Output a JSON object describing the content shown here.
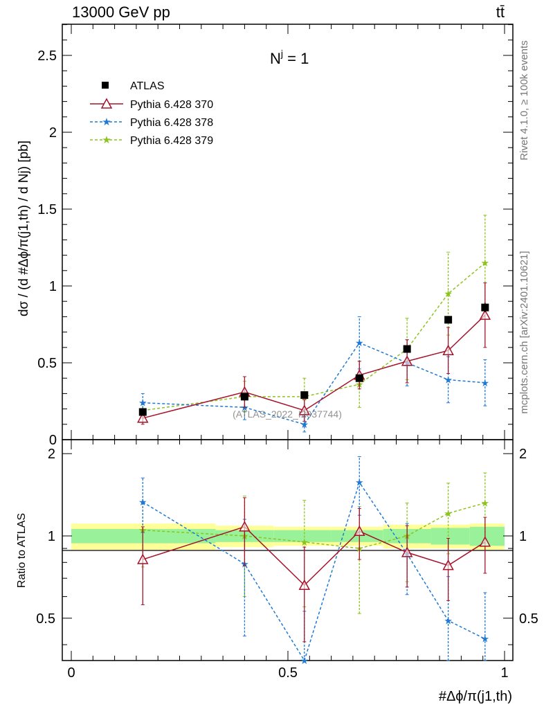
{
  "header": {
    "left": "13000 GeV pp",
    "right": "tt̄"
  },
  "side_labels": {
    "rivet": "Rivet 4.1.0, ≥ 100k events",
    "mcplots": "mcplots.cern.ch [arXiv:2401.10621]"
  },
  "panel_title": "N",
  "panel_title_sup": "j",
  "panel_title_suffix": " = 1",
  "watermark": "(ATLAS_2022_I2037744)",
  "ylabel_main": "dσ / (d #Δϕ/π(j1,th) / d Nj) [pb]",
  "ylabel_ratio": "Ratio to ATLAS",
  "xlabel": "#Δϕ/π(j1,th)",
  "colors": {
    "atlas": "#000000",
    "s370": "#a5122a",
    "s378": "#1f78d4",
    "s379": "#8cc31c",
    "band_inner": "#99f299",
    "band_outer": "#ffff99"
  },
  "chart_data": [
    {
      "type": "scatter",
      "panel": "main",
      "xlim": [
        0,
        1
      ],
      "ylim": [
        0,
        2.7
      ],
      "x": [
        0.165,
        0.4,
        0.538,
        0.665,
        0.775,
        0.87,
        0.955
      ],
      "yticks": [
        0,
        0.5,
        1,
        1.5,
        2,
        2.5
      ],
      "ytick_labels": [
        "0",
        "0.5",
        "1",
        "1.5",
        "2",
        "2.5"
      ],
      "series": [
        {
          "name": "ATLAS",
          "values": [
            0.18,
            0.28,
            0.29,
            0.4,
            0.59,
            0.78,
            0.86
          ],
          "errors": [
            0.01,
            0.01,
            0.01,
            0.02,
            0.02,
            0.02,
            0.03
          ]
        },
        {
          "name": "Pythia 6.428 370",
          "values": [
            0.14,
            0.31,
            0.19,
            0.42,
            0.51,
            0.58,
            0.81
          ],
          "errors": [
            0.04,
            0.1,
            0.07,
            0.09,
            0.14,
            0.15,
            0.21
          ]
        },
        {
          "name": "Pythia 6.428 378",
          "values": [
            0.24,
            0.21,
            0.1,
            0.63,
            0.5,
            0.39,
            0.37
          ],
          "errors": [
            0.06,
            0.08,
            0.05,
            0.17,
            0.15,
            0.15,
            0.15
          ]
        },
        {
          "name": "Pythia 6.428 379",
          "values": [
            0.19,
            0.28,
            0.28,
            0.36,
            0.59,
            0.95,
            1.15
          ],
          "errors": [
            0.05,
            0.1,
            0.12,
            0.15,
            0.2,
            0.27,
            0.31
          ]
        }
      ]
    },
    {
      "type": "scatter",
      "panel": "ratio",
      "xlim": [
        0,
        1
      ],
      "ylim": [
        0.35,
        2.25
      ],
      "xticks": [
        0,
        0.5,
        1
      ],
      "xtick_labels": [
        "0",
        "0.5",
        "1"
      ],
      "yticks": [
        0.5,
        1,
        2
      ],
      "ytick_labels": [
        "0.5",
        "1",
        "2"
      ],
      "band_edges": [
        0,
        0.333,
        0.467,
        0.6,
        0.72,
        0.83,
        0.92,
        1.0
      ],
      "band_inner": [
        0.06,
        0.05,
        0.05,
        0.05,
        0.06,
        0.07,
        0.08
      ],
      "band_outer": [
        0.11,
        0.09,
        0.08,
        0.08,
        0.1,
        0.1,
        0.11
      ],
      "series": [
        {
          "name": "Pythia 6.428 370",
          "values": [
            0.82,
            1.08,
            0.66,
            1.04,
            0.87,
            0.78,
            0.95
          ],
          "errors": [
            0.26,
            0.3,
            0.25,
            0.22,
            0.22,
            0.2,
            0.22
          ]
        },
        {
          "name": "Pythia 6.428 378",
          "values": [
            1.33,
            0.79,
            0.33,
            1.57,
            0.86,
            0.49,
            0.42
          ],
          "errors": [
            0.3,
            0.36,
            0.2,
            0.38,
            0.25,
            0.22,
            0.2
          ]
        },
        {
          "name": "Pythia 6.428 379",
          "values": [
            1.05,
            1.0,
            0.95,
            0.9,
            1.0,
            1.21,
            1.32
          ],
          "errors": [
            0.28,
            0.4,
            0.4,
            0.38,
            0.32,
            0.35,
            0.38
          ]
        }
      ]
    }
  ]
}
